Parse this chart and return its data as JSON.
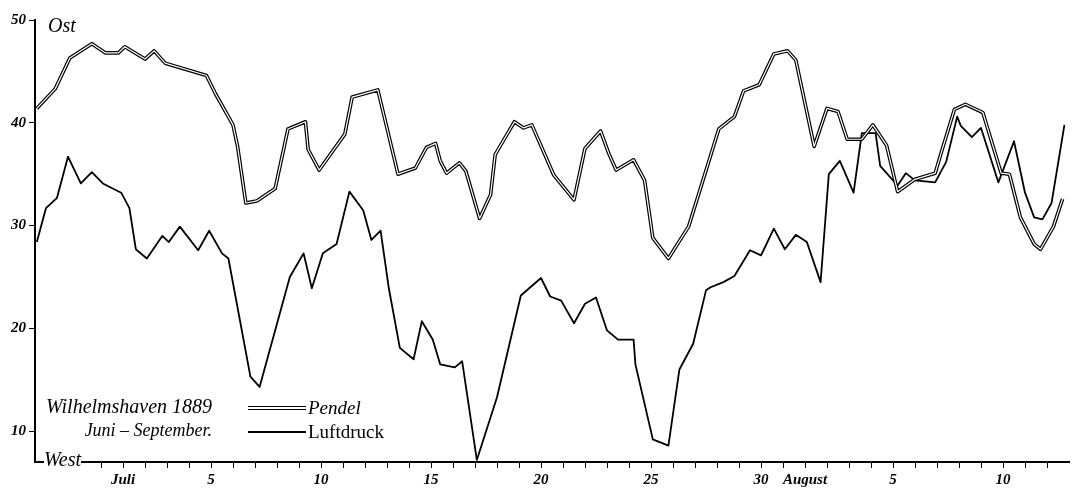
{
  "chart_data": {
    "type": "line",
    "title": "Wilhelmshaven 1889",
    "subtitle": "Juni – September.",
    "annotations": [
      "Ost",
      "West"
    ],
    "legend": "bottom left",
    "marker": "none",
    "xlim": [
      "1889-06-27",
      "1889-08-13"
    ],
    "ylim": [
      7,
      50
    ],
    "yticks": [
      10,
      20,
      30,
      40,
      50
    ],
    "xticks": [
      {
        "value": "1889-06-28",
        "label": null
      },
      {
        "value": "1889-06-29",
        "label": null
      },
      {
        "value": "1889-06-30",
        "label": null
      },
      {
        "value": "1889-07-01",
        "label": "Juli"
      },
      {
        "value": "1889-07-02",
        "label": null
      },
      {
        "value": "1889-07-03",
        "label": null
      },
      {
        "value": "1889-07-04",
        "label": null
      },
      {
        "value": "1889-07-05",
        "label": "5"
      },
      {
        "value": "1889-07-06",
        "label": null
      },
      {
        "value": "1889-07-07",
        "label": null
      },
      {
        "value": "1889-07-08",
        "label": null
      },
      {
        "value": "1889-07-09",
        "label": null
      },
      {
        "value": "1889-07-10",
        "label": "10"
      },
      {
        "value": "1889-07-11",
        "label": null
      },
      {
        "value": "1889-07-12",
        "label": null
      },
      {
        "value": "1889-07-13",
        "label": null
      },
      {
        "value": "1889-07-14",
        "label": null
      },
      {
        "value": "1889-07-15",
        "label": "15"
      },
      {
        "value": "1889-07-16",
        "label": null
      },
      {
        "value": "1889-07-17",
        "label": null
      },
      {
        "value": "1889-07-18",
        "label": null
      },
      {
        "value": "1889-07-19",
        "label": null
      },
      {
        "value": "1889-07-20",
        "label": "20"
      },
      {
        "value": "1889-07-21",
        "label": null
      },
      {
        "value": "1889-07-22",
        "label": null
      },
      {
        "value": "1889-07-23",
        "label": null
      },
      {
        "value": "1889-07-24",
        "label": null
      },
      {
        "value": "1889-07-25",
        "label": "25"
      },
      {
        "value": "1889-07-26",
        "label": null
      },
      {
        "value": "1889-07-27",
        "label": null
      },
      {
        "value": "1889-07-28",
        "label": null
      },
      {
        "value": "1889-07-29",
        "label": null
      },
      {
        "value": "1889-07-30",
        "label": "30"
      },
      {
        "value": "1889-07-31",
        "label": null
      },
      {
        "value": "1889-08-01",
        "label": "August"
      },
      {
        "value": "1889-08-02",
        "label": null
      },
      {
        "value": "1889-08-03",
        "label": null
      },
      {
        "value": "1889-08-04",
        "label": null
      },
      {
        "value": "1889-08-05",
        "label": "5"
      },
      {
        "value": "1889-08-06",
        "label": null
      },
      {
        "value": "1889-08-07",
        "label": null
      },
      {
        "value": "1889-08-08",
        "label": null
      },
      {
        "value": "1889-08-09",
        "label": null
      },
      {
        "value": "1889-08-10",
        "label": "10"
      },
      {
        "value": "1889-08-11",
        "label": null
      },
      {
        "value": "1889-08-12",
        "label": null
      }
    ],
    "series": [
      {
        "name": "Pendel",
        "color": "#000000",
        "x": [
          "1889-06-27T02:00",
          "1889-06-27T22:00",
          "1889-06-28T14:00",
          "1889-06-29T14:00",
          "1889-06-30T05:00",
          "1889-06-30T19:00",
          "1889-07-01T02:00",
          "1889-07-02T00:00",
          "1889-07-02T10:00",
          "1889-07-02T22:00",
          "1889-07-04T19:00",
          "1889-07-05T05:00",
          "1889-07-06T00:00",
          "1889-07-06T05:00",
          "1889-07-06T14:00",
          "1889-07-07T02:00",
          "1889-07-07T22:00",
          "1889-07-08T12:00",
          "1889-07-09T07:00",
          "1889-07-09T10:00",
          "1889-07-09T22:00",
          "1889-07-11T02:00",
          "1889-07-11T10:00",
          "1889-07-12T14:00",
          "1889-07-13T12:00",
          "1889-07-14T07:00",
          "1889-07-14T19:00",
          "1889-07-15T05:00",
          "1889-07-15T10:00",
          "1889-07-15T17:00",
          "1889-07-16T07:00",
          "1889-07-16T14:00",
          "1889-07-17T05:00",
          "1889-07-17T17:00",
          "1889-07-17T22:00",
          "1889-07-18T19:00",
          "1889-07-19T05:00",
          "1889-07-19T14:00",
          "1889-07-20T14:00",
          "1889-07-21T12:00",
          "1889-07-22T00:00",
          "1889-07-22T17:00",
          "1889-07-23T02:00",
          "1889-07-23T10:00",
          "1889-07-24T05:00",
          "1889-07-24T17:00",
          "1889-07-25T02:00",
          "1889-07-25T19:00",
          "1889-07-26T17:00",
          "1889-07-27T17:00",
          "1889-07-28T02:00",
          "1889-07-28T19:00",
          "1889-07-29T05:00",
          "1889-07-29T22:00",
          "1889-07-30T14:00",
          "1889-07-31T05:00",
          "1889-07-31T14:00",
          "1889-08-01T10:00",
          "1889-08-02T00:00",
          "1889-08-02T12:00",
          "1889-08-02T22:00",
          "1889-08-03T14:00",
          "1889-08-04T02:00",
          "1889-08-04T17:00",
          "1889-08-05T05:00",
          "1889-08-06T00:00",
          "1889-08-06T22:00",
          "1889-08-07T05:00",
          "1889-08-07T19:00",
          "1889-08-08T07:00",
          "1889-08-09T02:00",
          "1889-08-09T22:00",
          "1889-08-10T07:00",
          "1889-08-10T19:00",
          "1889-08-11T10:00",
          "1889-08-11T17:00",
          "1889-08-12T07:00",
          "1889-08-12T17:00"
        ],
        "values": [
          41.4,
          43.3,
          46.3,
          47.7,
          46.8,
          46.8,
          47.4,
          46.2,
          47.0,
          45.8,
          44.6,
          42.8,
          39.8,
          37.7,
          32.2,
          32.4,
          33.6,
          39.4,
          40.1,
          37.4,
          35.4,
          38.9,
          42.5,
          43.2,
          35.0,
          35.6,
          37.6,
          38.0,
          36.3,
          35.1,
          36.1,
          35.3,
          30.7,
          33.0,
          36.9,
          40.1,
          39.5,
          39.8,
          34.9,
          32.5,
          37.5,
          39.2,
          37.0,
          35.4,
          36.4,
          34.4,
          28.8,
          26.8,
          29.9,
          36.8,
          39.4,
          40.6,
          43.1,
          43.7,
          46.7,
          47.0,
          46.1,
          37.7,
          41.4,
          41.1,
          38.4,
          38.4,
          39.8,
          37.8,
          33.3,
          34.5,
          35.1,
          37.2,
          41.3,
          41.8,
          41.0,
          35.1,
          35.0,
          30.8,
          28.2,
          27.7,
          29.9,
          32.6
        ]
      },
      {
        "name": "Luftdruck",
        "color": "#000000",
        "x": [
          "1889-06-27T02:00",
          "1889-06-27T12:00",
          "1889-06-28T00:00",
          "1889-06-28T12:00",
          "1889-06-29T02:00",
          "1889-06-29T14:00",
          "1889-06-30T02:00",
          "1889-06-30T22:00",
          "1889-07-01T07:00",
          "1889-07-01T14:00",
          "1889-07-02T02:00",
          "1889-07-02T19:00",
          "1889-07-03T02:00",
          "1889-07-03T14:00",
          "1889-07-04T10:00",
          "1889-07-04T22:00",
          "1889-07-05T12:00",
          "1889-07-05T19:00",
          "1889-07-06T19:00",
          "1889-07-07T05:00",
          "1889-07-08T14:00",
          "1889-07-09T05:00",
          "1889-07-09T14:00",
          "1889-07-10T02:00",
          "1889-07-10T17:00",
          "1889-07-11T07:00",
          "1889-07-11T22:00",
          "1889-07-12T07:00",
          "1889-07-12T17:00",
          "1889-07-13T02:00",
          "1889-07-13T14:00",
          "1889-07-14T05:00",
          "1889-07-14T14:00",
          "1889-07-15T02:00",
          "1889-07-15T10:00",
          "1889-07-16T02:00",
          "1889-07-16T10:00",
          "1889-07-17T02:00",
          "1889-07-18T00:00",
          "1889-07-19T02:00",
          "1889-07-20T00:00",
          "1889-07-20T10:00",
          "1889-07-20T22:00",
          "1889-07-21T12:00",
          "1889-07-22T00:00",
          "1889-07-22T12:00",
          "1889-07-23T00:00",
          "1889-07-23T12:00",
          "1889-07-24T05:00",
          "1889-07-24T07:00",
          "1889-07-25T02:00",
          "1889-07-25T19:00",
          "1889-07-26T07:00",
          "1889-07-26T22:00",
          "1889-07-27T12:00",
          "1889-07-27T17:00",
          "1889-07-28T07:00",
          "1889-07-28T19:00",
          "1889-07-29T12:00",
          "1889-07-30T00:00",
          "1889-07-30T14:00",
          "1889-07-31T02:00",
          "1889-07-31T14:00",
          "1889-08-01T02:00",
          "1889-08-01T17:00",
          "1889-08-02T02:00",
          "1889-08-02T14:00",
          "1889-08-03T05:00",
          "1889-08-03T14:00",
          "1889-08-04T05:00",
          "1889-08-04T10:00",
          "1889-08-05T05:00",
          "1889-08-05T14:00",
          "1889-08-06T00:00",
          "1889-08-06T22:00",
          "1889-08-07T10:00",
          "1889-08-07T22:00",
          "1889-08-08T02:00",
          "1889-08-08T14:00",
          "1889-08-09T00:00",
          "1889-08-09T19:00",
          "1889-08-10T12:00",
          "1889-08-11T00:00",
          "1889-08-11T10:00",
          "1889-08-11T19:00",
          "1889-08-12T05:00",
          "1889-08-12T19:00"
        ],
        "values": [
          28.4,
          31.7,
          32.7,
          36.7,
          34.1,
          35.2,
          34.1,
          33.2,
          31.7,
          27.7,
          26.8,
          29.0,
          28.4,
          29.9,
          27.6,
          29.5,
          27.3,
          26.8,
          15.3,
          14.3,
          25.0,
          27.3,
          23.9,
          27.3,
          28.2,
          33.3,
          31.5,
          28.6,
          29.5,
          23.9,
          18.1,
          17.0,
          20.7,
          18.9,
          16.5,
          16.2,
          16.8,
          7.2,
          13.3,
          23.2,
          24.9,
          23.1,
          22.7,
          20.5,
          22.4,
          23.0,
          19.8,
          18.9,
          18.9,
          16.5,
          9.2,
          8.6,
          16.0,
          18.5,
          23.7,
          24.0,
          24.5,
          25.1,
          27.6,
          27.1,
          29.7,
          27.7,
          29.1,
          28.4,
          24.5,
          35.0,
          36.3,
          33.2,
          39.0,
          39.0,
          35.8,
          33.9,
          35.1,
          34.4,
          34.2,
          36.2,
          40.6,
          39.7,
          38.6,
          39.5,
          34.2,
          38.2,
          33.2,
          30.8,
          30.6,
          32.2,
          39.8
        ]
      }
    ]
  }
}
